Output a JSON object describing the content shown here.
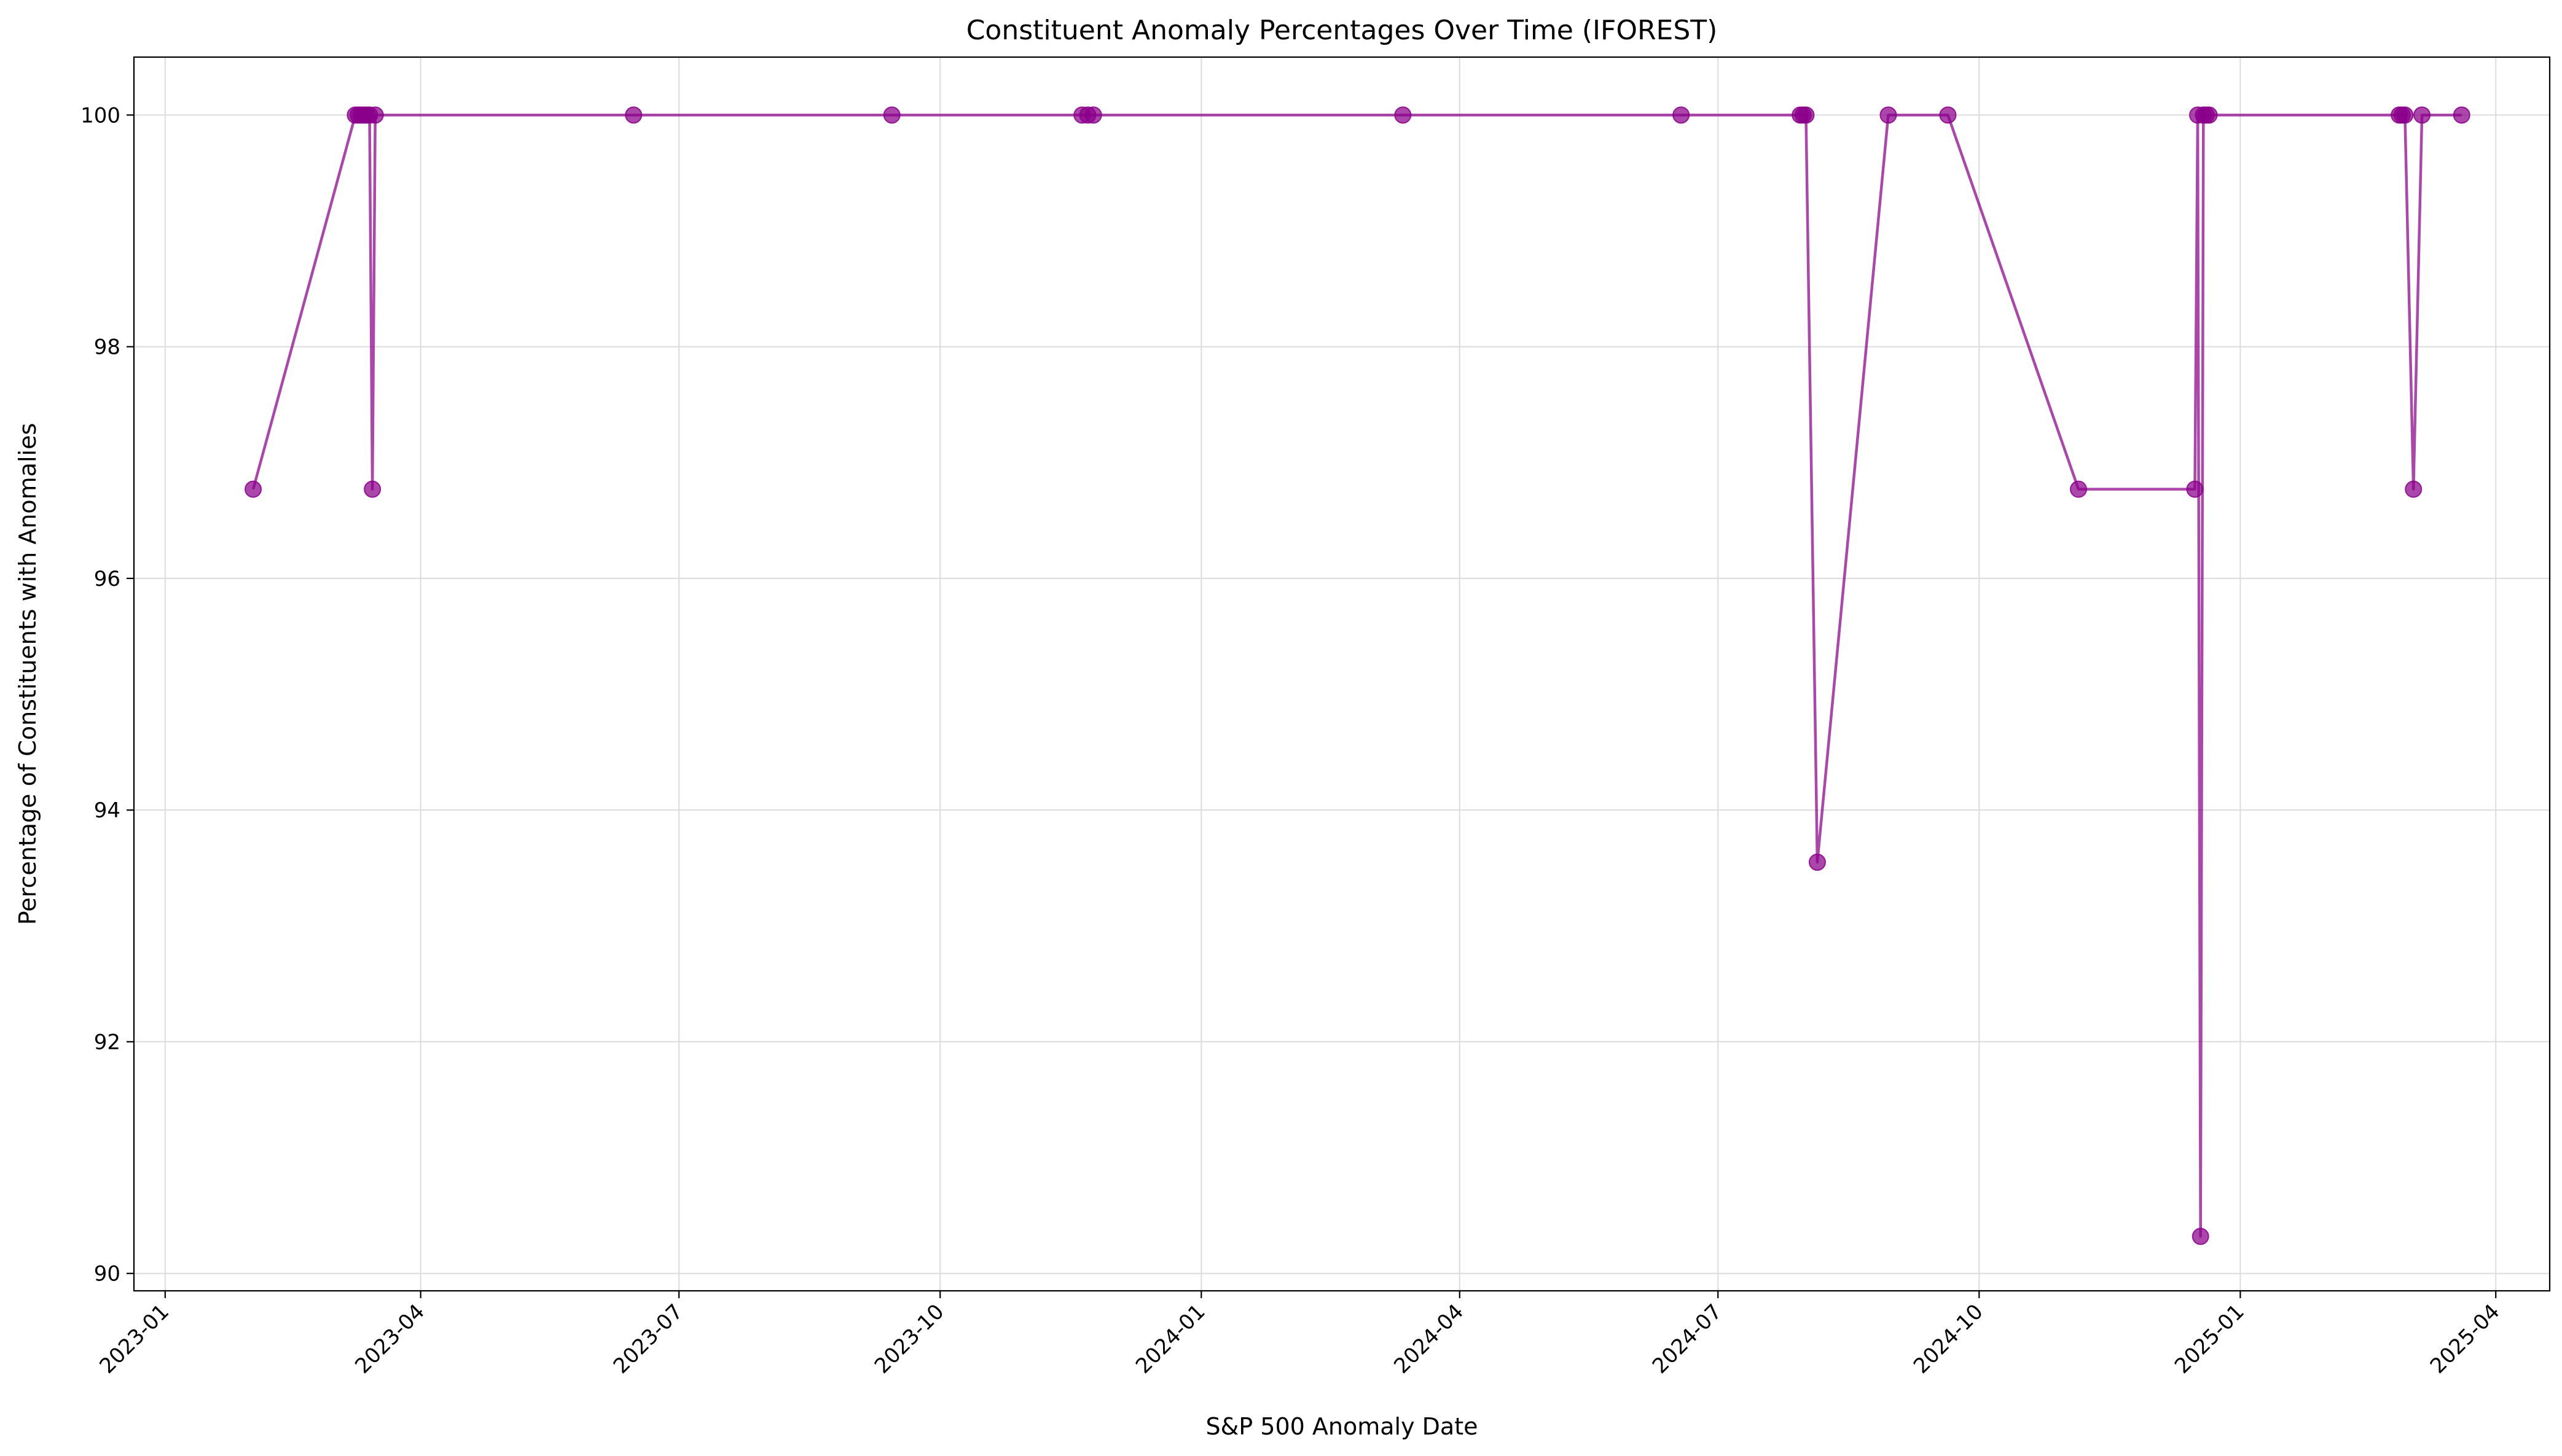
{
  "chart_data": {
    "type": "line",
    "title": "Constituent Anomaly Percentages Over Time (IFOREST)",
    "xlabel": "S&P 500 Anomaly Date",
    "ylabel": "Percentage of Constituents with Anomalies",
    "x_axis_type": "date",
    "xlim": [
      "2022-12-21",
      "2025-04-20"
    ],
    "ylim": [
      89.85,
      100.5
    ],
    "x_ticks": [
      "2023-01",
      "2023-04",
      "2023-07",
      "2023-10",
      "2024-01",
      "2024-04",
      "2024-07",
      "2024-10",
      "2025-01",
      "2025-04"
    ],
    "y_ticks": [
      90,
      92,
      94,
      96,
      98,
      100
    ],
    "grid": true,
    "legend": "none",
    "series": [
      {
        "color": "#8B008B",
        "marker": "circle",
        "points": [
          {
            "x": "2023-02-01",
            "y": 96.77
          },
          {
            "x": "2023-03-09",
            "y": 100
          },
          {
            "x": "2023-03-10",
            "y": 100
          },
          {
            "x": "2023-03-11",
            "y": 100
          },
          {
            "x": "2023-03-12",
            "y": 100
          },
          {
            "x": "2023-03-13",
            "y": 100
          },
          {
            "x": "2023-03-14",
            "y": 100
          },
          {
            "x": "2023-03-15",
            "y": 96.77
          },
          {
            "x": "2023-03-16",
            "y": 100
          },
          {
            "x": "2023-06-15",
            "y": 100
          },
          {
            "x": "2023-09-14",
            "y": 100
          },
          {
            "x": "2023-11-20",
            "y": 100
          },
          {
            "x": "2023-11-22",
            "y": 100
          },
          {
            "x": "2023-11-24",
            "y": 100
          },
          {
            "x": "2024-03-12",
            "y": 100
          },
          {
            "x": "2024-06-18",
            "y": 100
          },
          {
            "x": "2024-07-30",
            "y": 100
          },
          {
            "x": "2024-07-31",
            "y": 100
          },
          {
            "x": "2024-08-01",
            "y": 100
          },
          {
            "x": "2024-08-05",
            "y": 93.55
          },
          {
            "x": "2024-08-30",
            "y": 100
          },
          {
            "x": "2024-09-20",
            "y": 100
          },
          {
            "x": "2024-11-05",
            "y": 96.77
          },
          {
            "x": "2024-12-16",
            "y": 96.77
          },
          {
            "x": "2024-12-17",
            "y": 100
          },
          {
            "x": "2024-12-18",
            "y": 90.32
          },
          {
            "x": "2024-12-19",
            "y": 100
          },
          {
            "x": "2024-12-20",
            "y": 100
          },
          {
            "x": "2024-12-21",
            "y": 100
          },
          {
            "x": "2025-02-26",
            "y": 100
          },
          {
            "x": "2025-02-27",
            "y": 100
          },
          {
            "x": "2025-02-28",
            "y": 100
          },
          {
            "x": "2025-03-03",
            "y": 96.77
          },
          {
            "x": "2025-03-06",
            "y": 100
          },
          {
            "x": "2025-03-20",
            "y": 100
          }
        ]
      }
    ]
  }
}
